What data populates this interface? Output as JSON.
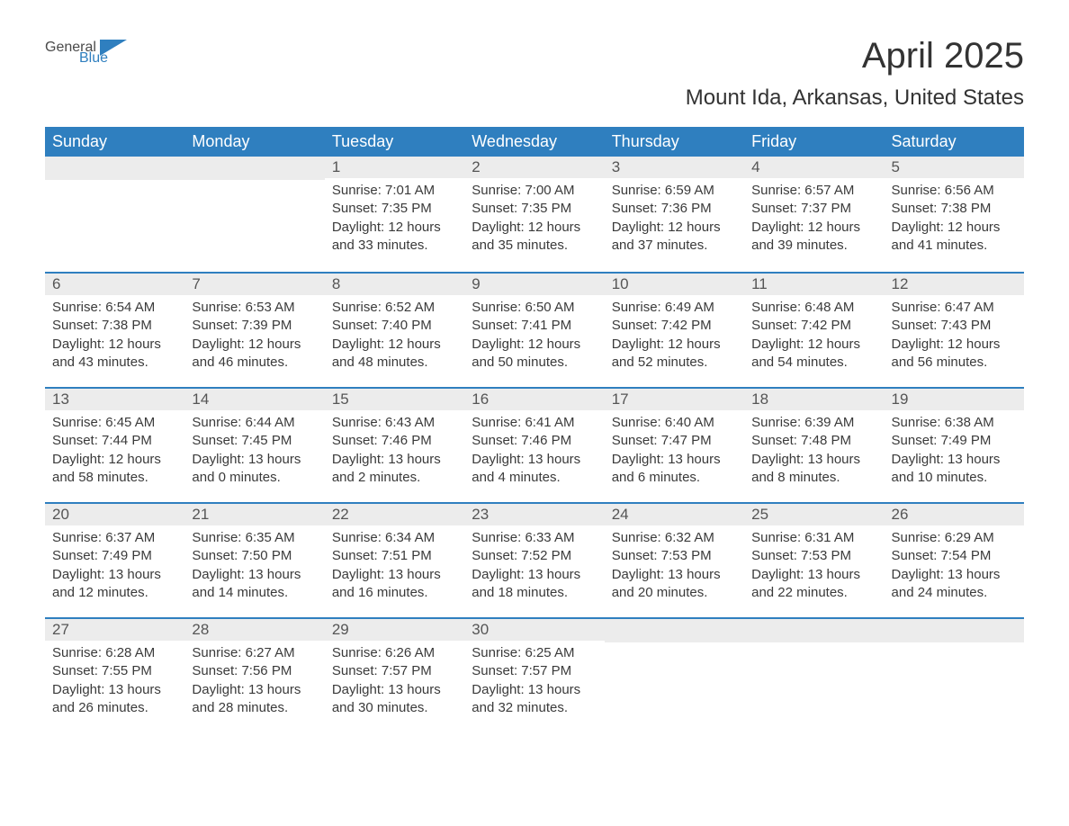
{
  "logo": {
    "word1": "General",
    "word2": "Blue"
  },
  "title": "April 2025",
  "location": "Mount Ida, Arkansas, United States",
  "columns": [
    "Sunday",
    "Monday",
    "Tuesday",
    "Wednesday",
    "Thursday",
    "Friday",
    "Saturday"
  ],
  "colors": {
    "header_bg": "#2f7fbf",
    "header_text": "#ffffff",
    "daynum_bg": "#ececec",
    "border_top": "#2f7fbf",
    "body_text": "#3a3a3a",
    "page_bg": "#ffffff",
    "logo_gray": "#4a4a4a",
    "logo_blue": "#2f7fbf"
  },
  "fonts": {
    "title_size_pt": 30,
    "location_size_pt": 18,
    "header_size_pt": 14,
    "body_size_pt": 11
  },
  "weeks": [
    [
      {
        "day": "",
        "sunrise": "",
        "sunset": "",
        "daylight": ""
      },
      {
        "day": "",
        "sunrise": "",
        "sunset": "",
        "daylight": ""
      },
      {
        "day": "1",
        "sunrise": "Sunrise: 7:01 AM",
        "sunset": "Sunset: 7:35 PM",
        "daylight": "Daylight: 12 hours and 33 minutes."
      },
      {
        "day": "2",
        "sunrise": "Sunrise: 7:00 AM",
        "sunset": "Sunset: 7:35 PM",
        "daylight": "Daylight: 12 hours and 35 minutes."
      },
      {
        "day": "3",
        "sunrise": "Sunrise: 6:59 AM",
        "sunset": "Sunset: 7:36 PM",
        "daylight": "Daylight: 12 hours and 37 minutes."
      },
      {
        "day": "4",
        "sunrise": "Sunrise: 6:57 AM",
        "sunset": "Sunset: 7:37 PM",
        "daylight": "Daylight: 12 hours and 39 minutes."
      },
      {
        "day": "5",
        "sunrise": "Sunrise: 6:56 AM",
        "sunset": "Sunset: 7:38 PM",
        "daylight": "Daylight: 12 hours and 41 minutes."
      }
    ],
    [
      {
        "day": "6",
        "sunrise": "Sunrise: 6:54 AM",
        "sunset": "Sunset: 7:38 PM",
        "daylight": "Daylight: 12 hours and 43 minutes."
      },
      {
        "day": "7",
        "sunrise": "Sunrise: 6:53 AM",
        "sunset": "Sunset: 7:39 PM",
        "daylight": "Daylight: 12 hours and 46 minutes."
      },
      {
        "day": "8",
        "sunrise": "Sunrise: 6:52 AM",
        "sunset": "Sunset: 7:40 PM",
        "daylight": "Daylight: 12 hours and 48 minutes."
      },
      {
        "day": "9",
        "sunrise": "Sunrise: 6:50 AM",
        "sunset": "Sunset: 7:41 PM",
        "daylight": "Daylight: 12 hours and 50 minutes."
      },
      {
        "day": "10",
        "sunrise": "Sunrise: 6:49 AM",
        "sunset": "Sunset: 7:42 PM",
        "daylight": "Daylight: 12 hours and 52 minutes."
      },
      {
        "day": "11",
        "sunrise": "Sunrise: 6:48 AM",
        "sunset": "Sunset: 7:42 PM",
        "daylight": "Daylight: 12 hours and 54 minutes."
      },
      {
        "day": "12",
        "sunrise": "Sunrise: 6:47 AM",
        "sunset": "Sunset: 7:43 PM",
        "daylight": "Daylight: 12 hours and 56 minutes."
      }
    ],
    [
      {
        "day": "13",
        "sunrise": "Sunrise: 6:45 AM",
        "sunset": "Sunset: 7:44 PM",
        "daylight": "Daylight: 12 hours and 58 minutes."
      },
      {
        "day": "14",
        "sunrise": "Sunrise: 6:44 AM",
        "sunset": "Sunset: 7:45 PM",
        "daylight": "Daylight: 13 hours and 0 minutes."
      },
      {
        "day": "15",
        "sunrise": "Sunrise: 6:43 AM",
        "sunset": "Sunset: 7:46 PM",
        "daylight": "Daylight: 13 hours and 2 minutes."
      },
      {
        "day": "16",
        "sunrise": "Sunrise: 6:41 AM",
        "sunset": "Sunset: 7:46 PM",
        "daylight": "Daylight: 13 hours and 4 minutes."
      },
      {
        "day": "17",
        "sunrise": "Sunrise: 6:40 AM",
        "sunset": "Sunset: 7:47 PM",
        "daylight": "Daylight: 13 hours and 6 minutes."
      },
      {
        "day": "18",
        "sunrise": "Sunrise: 6:39 AM",
        "sunset": "Sunset: 7:48 PM",
        "daylight": "Daylight: 13 hours and 8 minutes."
      },
      {
        "day": "19",
        "sunrise": "Sunrise: 6:38 AM",
        "sunset": "Sunset: 7:49 PM",
        "daylight": "Daylight: 13 hours and 10 minutes."
      }
    ],
    [
      {
        "day": "20",
        "sunrise": "Sunrise: 6:37 AM",
        "sunset": "Sunset: 7:49 PM",
        "daylight": "Daylight: 13 hours and 12 minutes."
      },
      {
        "day": "21",
        "sunrise": "Sunrise: 6:35 AM",
        "sunset": "Sunset: 7:50 PM",
        "daylight": "Daylight: 13 hours and 14 minutes."
      },
      {
        "day": "22",
        "sunrise": "Sunrise: 6:34 AM",
        "sunset": "Sunset: 7:51 PM",
        "daylight": "Daylight: 13 hours and 16 minutes."
      },
      {
        "day": "23",
        "sunrise": "Sunrise: 6:33 AM",
        "sunset": "Sunset: 7:52 PM",
        "daylight": "Daylight: 13 hours and 18 minutes."
      },
      {
        "day": "24",
        "sunrise": "Sunrise: 6:32 AM",
        "sunset": "Sunset: 7:53 PM",
        "daylight": "Daylight: 13 hours and 20 minutes."
      },
      {
        "day": "25",
        "sunrise": "Sunrise: 6:31 AM",
        "sunset": "Sunset: 7:53 PM",
        "daylight": "Daylight: 13 hours and 22 minutes."
      },
      {
        "day": "26",
        "sunrise": "Sunrise: 6:29 AM",
        "sunset": "Sunset: 7:54 PM",
        "daylight": "Daylight: 13 hours and 24 minutes."
      }
    ],
    [
      {
        "day": "27",
        "sunrise": "Sunrise: 6:28 AM",
        "sunset": "Sunset: 7:55 PM",
        "daylight": "Daylight: 13 hours and 26 minutes."
      },
      {
        "day": "28",
        "sunrise": "Sunrise: 6:27 AM",
        "sunset": "Sunset: 7:56 PM",
        "daylight": "Daylight: 13 hours and 28 minutes."
      },
      {
        "day": "29",
        "sunrise": "Sunrise: 6:26 AM",
        "sunset": "Sunset: 7:57 PM",
        "daylight": "Daylight: 13 hours and 30 minutes."
      },
      {
        "day": "30",
        "sunrise": "Sunrise: 6:25 AM",
        "sunset": "Sunset: 7:57 PM",
        "daylight": "Daylight: 13 hours and 32 minutes."
      },
      {
        "day": "",
        "sunrise": "",
        "sunset": "",
        "daylight": ""
      },
      {
        "day": "",
        "sunrise": "",
        "sunset": "",
        "daylight": ""
      },
      {
        "day": "",
        "sunrise": "",
        "sunset": "",
        "daylight": ""
      }
    ]
  ]
}
